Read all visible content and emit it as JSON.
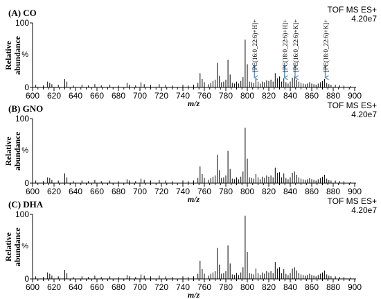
{
  "chart_data": [
    {
      "type": "bar",
      "title": "(A) CO",
      "info_line1": "TOF MS ES+",
      "info_line2": "4.20e7",
      "ylabel_line1": "Relative",
      "ylabel_line2": "abundance",
      "yunit": "%",
      "xlabel": "m/z",
      "xlim": [
        600,
        900
      ],
      "ylim": [
        0,
        100
      ],
      "yticks": [
        "0",
        "100"
      ],
      "xticks": [
        "600",
        "620",
        "640",
        "660",
        "680",
        "700",
        "720",
        "740",
        "760",
        "780",
        "800",
        "820",
        "840",
        "860",
        "880",
        "900"
      ],
      "peaks": [
        {
          "x": 603,
          "y": 4
        },
        {
          "x": 610,
          "y": 3
        },
        {
          "x": 614,
          "y": 9
        },
        {
          "x": 616,
          "y": 7
        },
        {
          "x": 618,
          "y": 5
        },
        {
          "x": 624,
          "y": 4
        },
        {
          "x": 630,
          "y": 13
        },
        {
          "x": 632,
          "y": 9
        },
        {
          "x": 638,
          "y": 3
        },
        {
          "x": 646,
          "y": 4
        },
        {
          "x": 652,
          "y": 3
        },
        {
          "x": 658,
          "y": 5
        },
        {
          "x": 664,
          "y": 3
        },
        {
          "x": 672,
          "y": 4
        },
        {
          "x": 680,
          "y": 3
        },
        {
          "x": 688,
          "y": 7
        },
        {
          "x": 690,
          "y": 4
        },
        {
          "x": 696,
          "y": 3
        },
        {
          "x": 701,
          "y": 8
        },
        {
          "x": 704,
          "y": 5
        },
        {
          "x": 710,
          "y": 4
        },
        {
          "x": 718,
          "y": 5
        },
        {
          "x": 724,
          "y": 4
        },
        {
          "x": 730,
          "y": 3
        },
        {
          "x": 740,
          "y": 4
        },
        {
          "x": 745,
          "y": 3
        },
        {
          "x": 750,
          "y": 4
        },
        {
          "x": 754,
          "y": 7
        },
        {
          "x": 756,
          "y": 22
        },
        {
          "x": 758,
          "y": 13
        },
        {
          "x": 760,
          "y": 8
        },
        {
          "x": 764,
          "y": 5
        },
        {
          "x": 766,
          "y": 7
        },
        {
          "x": 768,
          "y": 10
        },
        {
          "x": 770,
          "y": 12
        },
        {
          "x": 772,
          "y": 38
        },
        {
          "x": 774,
          "y": 18
        },
        {
          "x": 776,
          "y": 8
        },
        {
          "x": 778,
          "y": 9
        },
        {
          "x": 780,
          "y": 12
        },
        {
          "x": 782,
          "y": 43
        },
        {
          "x": 784,
          "y": 20
        },
        {
          "x": 786,
          "y": 7
        },
        {
          "x": 788,
          "y": 6
        },
        {
          "x": 790,
          "y": 9
        },
        {
          "x": 792,
          "y": 6
        },
        {
          "x": 794,
          "y": 10
        },
        {
          "x": 796,
          "y": 16
        },
        {
          "x": 798,
          "y": 74
        },
        {
          "x": 800,
          "y": 36
        },
        {
          "x": 802,
          "y": 9
        },
        {
          "x": 804,
          "y": 8
        },
        {
          "x": 806,
          "y": 7
        },
        {
          "x": 808,
          "y": 13
        },
        {
          "x": 810,
          "y": 9
        },
        {
          "x": 812,
          "y": 6
        },
        {
          "x": 814,
          "y": 9
        },
        {
          "x": 816,
          "y": 8
        },
        {
          "x": 818,
          "y": 11
        },
        {
          "x": 820,
          "y": 10
        },
        {
          "x": 822,
          "y": 12
        },
        {
          "x": 824,
          "y": 9
        },
        {
          "x": 826,
          "y": 22
        },
        {
          "x": 828,
          "y": 14
        },
        {
          "x": 830,
          "y": 17
        },
        {
          "x": 832,
          "y": 9
        },
        {
          "x": 834,
          "y": 14
        },
        {
          "x": 836,
          "y": 8
        },
        {
          "x": 838,
          "y": 6
        },
        {
          "x": 840,
          "y": 9
        },
        {
          "x": 842,
          "y": 15
        },
        {
          "x": 844,
          "y": 17
        },
        {
          "x": 846,
          "y": 12
        },
        {
          "x": 848,
          "y": 9
        },
        {
          "x": 850,
          "y": 7
        },
        {
          "x": 852,
          "y": 6
        },
        {
          "x": 854,
          "y": 5
        },
        {
          "x": 856,
          "y": 6
        },
        {
          "x": 858,
          "y": 8
        },
        {
          "x": 860,
          "y": 6
        },
        {
          "x": 862,
          "y": 5
        },
        {
          "x": 864,
          "y": 4
        },
        {
          "x": 866,
          "y": 6
        },
        {
          "x": 868,
          "y": 8
        },
        {
          "x": 870,
          "y": 10
        },
        {
          "x": 872,
          "y": 13
        },
        {
          "x": 874,
          "y": 7
        },
        {
          "x": 876,
          "y": 5
        },
        {
          "x": 878,
          "y": 4
        },
        {
          "x": 882,
          "y": 4
        },
        {
          "x": 886,
          "y": 3
        },
        {
          "x": 890,
          "y": 3
        },
        {
          "x": 896,
          "y": 2
        }
      ],
      "annotations": [
        {
          "x": 806.6,
          "text": "[PC(16:0_22:6)+H]+"
        },
        {
          "x": 834.6,
          "text": "[PC(18:0_22:6)+H]+"
        },
        {
          "x": 844.5,
          "text": "[PC(16:0_22:6)+K]+"
        },
        {
          "x": 872.6,
          "text": "[PC(18:0_22:6)+K]+"
        }
      ]
    },
    {
      "type": "bar",
      "title": "(B) GNO",
      "info_line1": "TOF MS ES+",
      "info_line2": "4.20e7",
      "ylabel_line1": "Relative",
      "ylabel_line2": "abundance",
      "yunit": "%",
      "xlabel": "m/z",
      "xlim": [
        600,
        900
      ],
      "ylim": [
        0,
        100
      ],
      "yticks": [
        "0",
        "100"
      ],
      "xticks": [
        "600",
        "620",
        "640",
        "660",
        "680",
        "700",
        "720",
        "740",
        "760",
        "780",
        "800",
        "820",
        "840",
        "860",
        "880",
        "900"
      ],
      "peaks": [
        {
          "x": 603,
          "y": 4
        },
        {
          "x": 610,
          "y": 3
        },
        {
          "x": 614,
          "y": 9
        },
        {
          "x": 616,
          "y": 8
        },
        {
          "x": 618,
          "y": 5
        },
        {
          "x": 624,
          "y": 4
        },
        {
          "x": 630,
          "y": 15
        },
        {
          "x": 632,
          "y": 9
        },
        {
          "x": 638,
          "y": 3
        },
        {
          "x": 646,
          "y": 4
        },
        {
          "x": 652,
          "y": 3
        },
        {
          "x": 658,
          "y": 5
        },
        {
          "x": 664,
          "y": 3
        },
        {
          "x": 672,
          "y": 4
        },
        {
          "x": 680,
          "y": 3
        },
        {
          "x": 688,
          "y": 6
        },
        {
          "x": 690,
          "y": 4
        },
        {
          "x": 696,
          "y": 3
        },
        {
          "x": 701,
          "y": 7
        },
        {
          "x": 704,
          "y": 5
        },
        {
          "x": 710,
          "y": 4
        },
        {
          "x": 718,
          "y": 5
        },
        {
          "x": 724,
          "y": 4
        },
        {
          "x": 730,
          "y": 3
        },
        {
          "x": 740,
          "y": 4
        },
        {
          "x": 745,
          "y": 3
        },
        {
          "x": 750,
          "y": 4
        },
        {
          "x": 754,
          "y": 8
        },
        {
          "x": 756,
          "y": 26
        },
        {
          "x": 758,
          "y": 14
        },
        {
          "x": 760,
          "y": 8
        },
        {
          "x": 764,
          "y": 5
        },
        {
          "x": 766,
          "y": 8
        },
        {
          "x": 768,
          "y": 10
        },
        {
          "x": 770,
          "y": 12
        },
        {
          "x": 772,
          "y": 44
        },
        {
          "x": 774,
          "y": 20
        },
        {
          "x": 776,
          "y": 8
        },
        {
          "x": 778,
          "y": 9
        },
        {
          "x": 780,
          "y": 12
        },
        {
          "x": 782,
          "y": 50
        },
        {
          "x": 784,
          "y": 22
        },
        {
          "x": 786,
          "y": 7
        },
        {
          "x": 788,
          "y": 6
        },
        {
          "x": 790,
          "y": 9
        },
        {
          "x": 792,
          "y": 6
        },
        {
          "x": 794,
          "y": 10
        },
        {
          "x": 796,
          "y": 18
        },
        {
          "x": 798,
          "y": 86
        },
        {
          "x": 800,
          "y": 38
        },
        {
          "x": 802,
          "y": 9
        },
        {
          "x": 804,
          "y": 8
        },
        {
          "x": 806,
          "y": 7
        },
        {
          "x": 808,
          "y": 14
        },
        {
          "x": 810,
          "y": 9
        },
        {
          "x": 812,
          "y": 6
        },
        {
          "x": 814,
          "y": 10
        },
        {
          "x": 816,
          "y": 8
        },
        {
          "x": 818,
          "y": 12
        },
        {
          "x": 820,
          "y": 10
        },
        {
          "x": 822,
          "y": 12
        },
        {
          "x": 824,
          "y": 9
        },
        {
          "x": 826,
          "y": 24
        },
        {
          "x": 828,
          "y": 16
        },
        {
          "x": 830,
          "y": 17
        },
        {
          "x": 832,
          "y": 9
        },
        {
          "x": 834,
          "y": 15
        },
        {
          "x": 836,
          "y": 8
        },
        {
          "x": 838,
          "y": 6
        },
        {
          "x": 840,
          "y": 9
        },
        {
          "x": 842,
          "y": 16
        },
        {
          "x": 844,
          "y": 18
        },
        {
          "x": 846,
          "y": 13
        },
        {
          "x": 848,
          "y": 9
        },
        {
          "x": 850,
          "y": 7
        },
        {
          "x": 852,
          "y": 6
        },
        {
          "x": 854,
          "y": 5
        },
        {
          "x": 856,
          "y": 6
        },
        {
          "x": 858,
          "y": 8
        },
        {
          "x": 860,
          "y": 6
        },
        {
          "x": 862,
          "y": 5
        },
        {
          "x": 864,
          "y": 4
        },
        {
          "x": 866,
          "y": 6
        },
        {
          "x": 868,
          "y": 8
        },
        {
          "x": 870,
          "y": 10
        },
        {
          "x": 872,
          "y": 13
        },
        {
          "x": 874,
          "y": 7
        },
        {
          "x": 876,
          "y": 5
        },
        {
          "x": 878,
          "y": 4
        },
        {
          "x": 882,
          "y": 4
        },
        {
          "x": 886,
          "y": 3
        },
        {
          "x": 890,
          "y": 3
        },
        {
          "x": 896,
          "y": 2
        }
      ]
    },
    {
      "type": "bar",
      "title": "(C) DHA",
      "info_line1": "TOF MS ES+",
      "info_line2": "4.20e7",
      "ylabel_line1": "Relative",
      "ylabel_line2": "abundance",
      "yunit": "%",
      "xlabel": "m/z",
      "xlim": [
        600,
        900
      ],
      "ylim": [
        0,
        100
      ],
      "yticks": [
        "0",
        "100"
      ],
      "xticks": [
        "600",
        "620",
        "640",
        "660",
        "680",
        "700",
        "720",
        "740",
        "760",
        "780",
        "800",
        "820",
        "840",
        "860",
        "880",
        "900"
      ],
      "peaks": [
        {
          "x": 603,
          "y": 4
        },
        {
          "x": 610,
          "y": 3
        },
        {
          "x": 614,
          "y": 10
        },
        {
          "x": 616,
          "y": 8
        },
        {
          "x": 618,
          "y": 5
        },
        {
          "x": 624,
          "y": 4
        },
        {
          "x": 630,
          "y": 14
        },
        {
          "x": 632,
          "y": 9
        },
        {
          "x": 638,
          "y": 3
        },
        {
          "x": 646,
          "y": 4
        },
        {
          "x": 652,
          "y": 3
        },
        {
          "x": 658,
          "y": 5
        },
        {
          "x": 664,
          "y": 3
        },
        {
          "x": 672,
          "y": 4
        },
        {
          "x": 680,
          "y": 3
        },
        {
          "x": 688,
          "y": 6
        },
        {
          "x": 690,
          "y": 4
        },
        {
          "x": 696,
          "y": 3
        },
        {
          "x": 701,
          "y": 7
        },
        {
          "x": 704,
          "y": 5
        },
        {
          "x": 710,
          "y": 4
        },
        {
          "x": 718,
          "y": 5
        },
        {
          "x": 724,
          "y": 4
        },
        {
          "x": 730,
          "y": 3
        },
        {
          "x": 740,
          "y": 4
        },
        {
          "x": 745,
          "y": 3
        },
        {
          "x": 750,
          "y": 4
        },
        {
          "x": 754,
          "y": 8
        },
        {
          "x": 756,
          "y": 28
        },
        {
          "x": 758,
          "y": 15
        },
        {
          "x": 760,
          "y": 8
        },
        {
          "x": 764,
          "y": 5
        },
        {
          "x": 766,
          "y": 8
        },
        {
          "x": 768,
          "y": 10
        },
        {
          "x": 770,
          "y": 12
        },
        {
          "x": 772,
          "y": 48
        },
        {
          "x": 774,
          "y": 22
        },
        {
          "x": 776,
          "y": 8
        },
        {
          "x": 778,
          "y": 9
        },
        {
          "x": 780,
          "y": 12
        },
        {
          "x": 782,
          "y": 52
        },
        {
          "x": 784,
          "y": 24
        },
        {
          "x": 786,
          "y": 7
        },
        {
          "x": 788,
          "y": 6
        },
        {
          "x": 790,
          "y": 9
        },
        {
          "x": 792,
          "y": 6
        },
        {
          "x": 794,
          "y": 10
        },
        {
          "x": 796,
          "y": 18
        },
        {
          "x": 798,
          "y": 98
        },
        {
          "x": 800,
          "y": 42
        },
        {
          "x": 802,
          "y": 9
        },
        {
          "x": 804,
          "y": 8
        },
        {
          "x": 806,
          "y": 7
        },
        {
          "x": 808,
          "y": 16
        },
        {
          "x": 810,
          "y": 9
        },
        {
          "x": 812,
          "y": 6
        },
        {
          "x": 814,
          "y": 10
        },
        {
          "x": 816,
          "y": 8
        },
        {
          "x": 818,
          "y": 12
        },
        {
          "x": 820,
          "y": 10
        },
        {
          "x": 822,
          "y": 12
        },
        {
          "x": 824,
          "y": 9
        },
        {
          "x": 826,
          "y": 26
        },
        {
          "x": 828,
          "y": 16
        },
        {
          "x": 830,
          "y": 18
        },
        {
          "x": 832,
          "y": 9
        },
        {
          "x": 834,
          "y": 15
        },
        {
          "x": 836,
          "y": 8
        },
        {
          "x": 838,
          "y": 6
        },
        {
          "x": 840,
          "y": 9
        },
        {
          "x": 842,
          "y": 16
        },
        {
          "x": 844,
          "y": 18
        },
        {
          "x": 846,
          "y": 13
        },
        {
          "x": 848,
          "y": 9
        },
        {
          "x": 850,
          "y": 7
        },
        {
          "x": 852,
          "y": 6
        },
        {
          "x": 854,
          "y": 5
        },
        {
          "x": 856,
          "y": 6
        },
        {
          "x": 858,
          "y": 8
        },
        {
          "x": 860,
          "y": 6
        },
        {
          "x": 862,
          "y": 5
        },
        {
          "x": 864,
          "y": 4
        },
        {
          "x": 866,
          "y": 6
        },
        {
          "x": 868,
          "y": 8
        },
        {
          "x": 870,
          "y": 10
        },
        {
          "x": 872,
          "y": 13
        },
        {
          "x": 874,
          "y": 7
        },
        {
          "x": 876,
          "y": 5
        },
        {
          "x": 878,
          "y": 4
        },
        {
          "x": 882,
          "y": 4
        },
        {
          "x": 886,
          "y": 3
        },
        {
          "x": 890,
          "y": 3
        },
        {
          "x": 896,
          "y": 2
        }
      ]
    }
  ],
  "colors": {
    "axis": "#000000",
    "peak": "#000000",
    "arrow": "#5b8ec9"
  }
}
